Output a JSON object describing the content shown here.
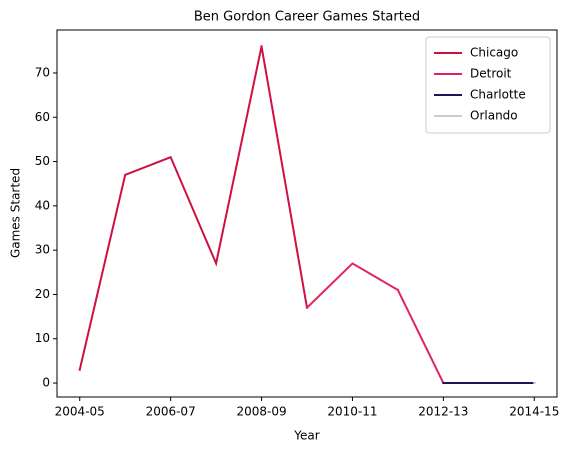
{
  "chart_data": {
    "type": "line",
    "title": "Ben Gordon Career Games Started",
    "xlabel": "Year",
    "ylabel": "Games Started",
    "categories": [
      "2004-05",
      null,
      "2006-07",
      null,
      "2008-09",
      null,
      "2010-11",
      null,
      "2012-13",
      null,
      "2014-15"
    ],
    "series": [
      {
        "name": "Chicago",
        "color": "#ce1141",
        "values": [
          3,
          47,
          51,
          27,
          76,
          null,
          null,
          null,
          null,
          null,
          null
        ]
      },
      {
        "name": "Detroit",
        "color": "#e0245e",
        "values": [
          null,
          null,
          null,
          null,
          null,
          17,
          27,
          21,
          null,
          null,
          null
        ]
      },
      {
        "name": "Charlotte",
        "color": "#1d1160",
        "values": [
          null,
          null,
          null,
          null,
          null,
          null,
          null,
          null,
          0,
          0,
          null
        ]
      },
      {
        "name": "Orlando",
        "color": "#c4ced4",
        "values": [
          null,
          null,
          null,
          null,
          null,
          null,
          null,
          null,
          null,
          null,
          0
        ]
      }
    ],
    "ylim": [
      -3.15,
      79.7
    ],
    "yticks": [
      0,
      10,
      20,
      30,
      40,
      50,
      60,
      70
    ],
    "legend": "upper right"
  }
}
